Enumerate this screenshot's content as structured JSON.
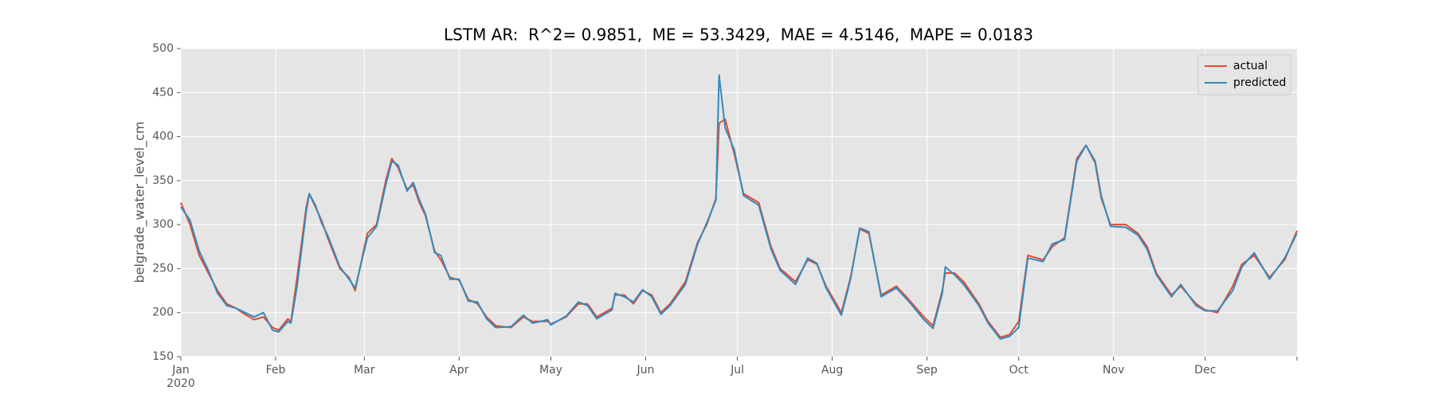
{
  "chart_data": {
    "type": "line",
    "title": "LSTM AR:  R^2= 0.9851,  ME = 53.3429,  MAE = 4.5146,  MAPE = 0.0183",
    "ylabel": "belgrade_water_level_cm",
    "x": [
      0,
      3,
      6,
      9,
      12,
      15,
      18,
      21,
      24,
      27,
      30,
      32,
      35,
      36,
      38,
      41,
      42,
      44,
      46,
      48,
      52,
      55,
      57,
      61,
      64,
      67,
      69,
      71,
      74,
      76,
      78,
      80,
      83,
      85,
      88,
      91,
      94,
      97,
      100,
      103,
      108,
      112,
      115,
      120,
      121,
      126,
      130,
      133,
      136,
      141,
      142,
      145,
      148,
      151,
      154,
      157,
      160,
      165,
      169,
      172,
      175,
      176,
      178,
      181,
      184,
      189,
      193,
      196,
      201,
      205,
      208,
      211,
      216,
      219,
      222,
      225,
      229,
      234,
      238,
      243,
      246,
      249,
      250,
      253,
      256,
      261,
      264,
      268,
      271,
      274,
      277,
      282,
      285,
      289,
      293,
      296,
      299,
      301,
      304,
      309,
      313,
      316,
      319,
      324,
      327,
      332,
      335,
      339,
      344,
      347,
      351,
      356,
      361,
      365
    ],
    "series": [
      {
        "name": "actual",
        "color": "#e24a33",
        "values": [
          325,
          300,
          265,
          245,
          225,
          210,
          205,
          198,
          192,
          195,
          183,
          180,
          193,
          190,
          240,
          320,
          335,
          320,
          305,
          285,
          250,
          240,
          225,
          290,
          300,
          350,
          375,
          365,
          340,
          345,
          325,
          310,
          270,
          260,
          240,
          237,
          215,
          210,
          195,
          185,
          183,
          195,
          190,
          190,
          187,
          195,
          210,
          210,
          195,
          205,
          220,
          220,
          210,
          225,
          220,
          200,
          210,
          235,
          280,
          300,
          330,
          415,
          420,
          380,
          335,
          325,
          275,
          250,
          235,
          260,
          255,
          230,
          200,
          240,
          295,
          290,
          220,
          230,
          215,
          195,
          185,
          225,
          245,
          245,
          235,
          210,
          190,
          172,
          175,
          190,
          265,
          260,
          275,
          285,
          375,
          390,
          370,
          330,
          300,
          300,
          290,
          275,
          245,
          220,
          230,
          210,
          203,
          200,
          230,
          255,
          265,
          240,
          260,
          293
        ]
      },
      {
        "name": "predicted",
        "color": "#348abd",
        "values": [
          320,
          305,
          270,
          248,
          222,
          208,
          205,
          200,
          195,
          200,
          180,
          178,
          190,
          188,
          230,
          315,
          335,
          322,
          302,
          288,
          252,
          238,
          228,
          285,
          298,
          345,
          372,
          368,
          338,
          348,
          328,
          312,
          268,
          265,
          238,
          238,
          213,
          212,
          193,
          183,
          184,
          197,
          188,
          192,
          186,
          196,
          212,
          208,
          193,
          203,
          222,
          218,
          212,
          226,
          218,
          198,
          208,
          232,
          278,
          302,
          328,
          470,
          410,
          385,
          333,
          322,
          272,
          248,
          232,
          262,
          256,
          228,
          197,
          238,
          296,
          292,
          218,
          228,
          213,
          192,
          182,
          222,
          252,
          243,
          232,
          208,
          188,
          170,
          173,
          183,
          262,
          258,
          278,
          283,
          372,
          390,
          372,
          333,
          298,
          297,
          288,
          272,
          243,
          218,
          232,
          208,
          202,
          202,
          225,
          252,
          268,
          238,
          262,
          290
        ]
      }
    ],
    "xlim": [
      0,
      365
    ],
    "xticks": [
      {
        "value": 0,
        "label": "Jan\n2020"
      },
      {
        "value": 31,
        "label": "Feb"
      },
      {
        "value": 60,
        "label": "Mar"
      },
      {
        "value": 91,
        "label": "Apr"
      },
      {
        "value": 121,
        "label": "May"
      },
      {
        "value": 152,
        "label": "Jun"
      },
      {
        "value": 182,
        "label": "Jul"
      },
      {
        "value": 213,
        "label": "Aug"
      },
      {
        "value": 244,
        "label": "Sep"
      },
      {
        "value": 274,
        "label": "Oct"
      },
      {
        "value": 305,
        "label": "Nov"
      },
      {
        "value": 335,
        "label": "Dec"
      }
    ],
    "ylim": [
      150,
      500
    ],
    "yticks": [
      150,
      200,
      250,
      300,
      350,
      400,
      450,
      500
    ],
    "grid": true,
    "legend": "upper right"
  }
}
